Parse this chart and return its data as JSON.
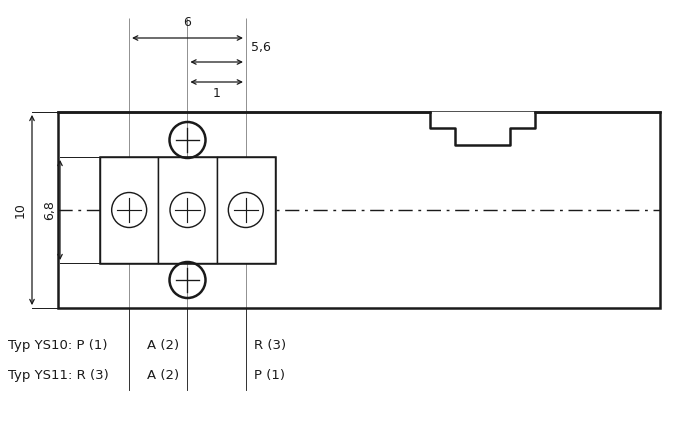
{
  "bg_color": "#ffffff",
  "line_color": "#1a1a1a",
  "text_color": "#1a1a1a",
  "fig_width": 6.94,
  "fig_height": 4.36,
  "dim_6_label": "6",
  "dim_56_label": "5,6",
  "dim_1_label": "1",
  "dim_10_label": "10",
  "dim_68_label": "6,8"
}
